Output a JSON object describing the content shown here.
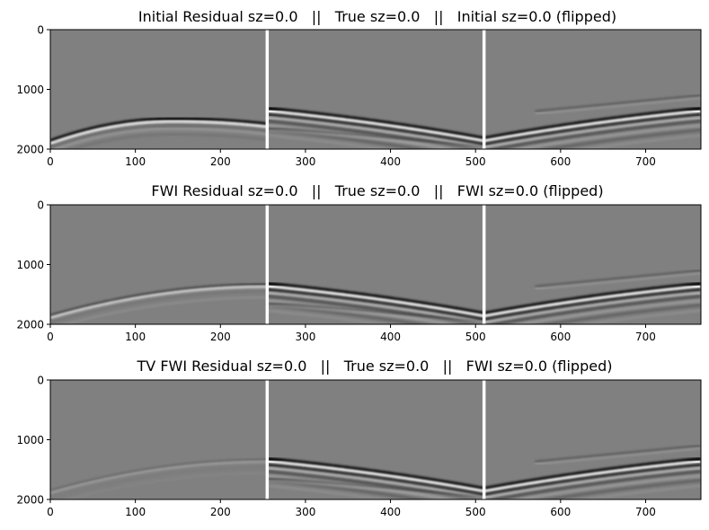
{
  "chart_data": [
    {
      "type": "heatmap",
      "title": "Initial Residual sz=0.0   ||   True sz=0.0   ||   Initial sz=0.0 (flipped)",
      "xlim": [
        0,
        765
      ],
      "ylim": [
        2000,
        0
      ],
      "x_ticks": [
        0,
        100,
        200,
        300,
        400,
        500,
        600,
        700
      ],
      "y_ticks": [
        0,
        1000,
        2000
      ],
      "panel_separators_x": [
        255,
        510
      ],
      "colormap": "gray",
      "residual_wavefront": {
        "depth_at_left": 1860,
        "apex_x": 145,
        "apex_depth": 1490,
        "depth_at_right": 1580
      }
    },
    {
      "type": "heatmap",
      "title": "FWI Residual sz=0.0   ||   True sz=0.0   ||   FWI sz=0.0 (flipped)",
      "xlim": [
        0,
        765
      ],
      "ylim": [
        2000,
        0
      ],
      "x_ticks": [
        0,
        100,
        200,
        300,
        400,
        500,
        600,
        700
      ],
      "y_ticks": [
        0,
        1000,
        2000
      ],
      "panel_separators_x": [
        255,
        510
      ],
      "colormap": "gray",
      "residual_wavefront": {
        "depth_at_left": 1850,
        "apex_x": 255,
        "apex_depth": 1330,
        "depth_at_right": 1330
      }
    },
    {
      "type": "heatmap",
      "title": "TV FWI Residual sz=0.0   ||   True sz=0.0   ||   FWI sz=0.0 (flipped)",
      "xlim": [
        0,
        765
      ],
      "ylim": [
        2000,
        0
      ],
      "x_ticks": [
        0,
        100,
        200,
        300,
        400,
        500,
        600,
        700
      ],
      "y_ticks": [
        0,
        1000,
        2000
      ],
      "panel_separators_x": [
        255,
        510
      ],
      "colormap": "gray",
      "residual_wavefront": {
        "depth_at_left": 1850,
        "apex_x": 255,
        "apex_depth": 1330,
        "depth_at_right": 1330
      }
    }
  ]
}
